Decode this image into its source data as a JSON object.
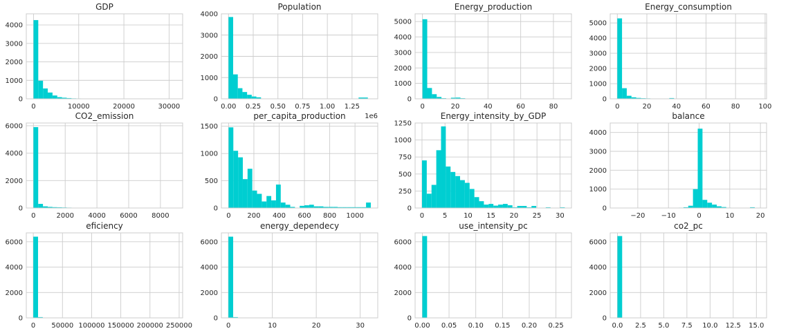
{
  "figure": {
    "bar_color": "#00ced1",
    "background": "#ffffff",
    "grid_color": "#cccccc"
  },
  "chart_data": [
    {
      "type": "bar",
      "title": "GDP",
      "xlim": [
        -1600,
        33000
      ],
      "ylim": [
        0,
        4600
      ],
      "xticks": [
        0,
        10000,
        20000,
        30000
      ],
      "xtick_labels": [
        "0",
        "10000",
        "20000",
        "30000"
      ],
      "yticks": [
        0,
        1000,
        2000,
        3000,
        4000
      ],
      "ytick_labels": [
        "0",
        "1000",
        "2000",
        "3000",
        "4000"
      ],
      "bin_start": 0,
      "bin_width": 1050,
      "offset_text": "",
      "values": [
        4260,
        980,
        560,
        340,
        180,
        90,
        60,
        40,
        25,
        20,
        15,
        12,
        10,
        8,
        8,
        8,
        8,
        8,
        8,
        6,
        5,
        2,
        0,
        0,
        0,
        0,
        0,
        0,
        0,
        2
      ]
    },
    {
      "type": "bar",
      "title": "Population",
      "xlim": [
        -72000,
        1510000
      ],
      "ylim": [
        0,
        4000
      ],
      "xticks": [
        0,
        250000,
        500000,
        750000,
        1000000,
        1250000
      ],
      "xtick_labels": [
        "0.00",
        "0.25",
        "0.50",
        "0.75",
        "1.00",
        "1.25"
      ],
      "yticks": [
        0,
        1000,
        2000,
        3000,
        4000
      ],
      "ytick_labels": [
        "0",
        "1000",
        "2000",
        "3000",
        "4000"
      ],
      "bin_start": 0,
      "bin_width": 47000,
      "offset_text": "1e6",
      "values": [
        3850,
        1150,
        500,
        320,
        190,
        110,
        70,
        0,
        0,
        0,
        0,
        0,
        0,
        0,
        0,
        14,
        14,
        14,
        14,
        14,
        14,
        14,
        14,
        14,
        14,
        14,
        14,
        14,
        60,
        60
      ]
    },
    {
      "type": "bar",
      "title": "Energy_production",
      "xlim": [
        -4.5,
        91
      ],
      "ylim": [
        0,
        5500
      ],
      "xticks": [
        0,
        20,
        40,
        60,
        80
      ],
      "xtick_labels": [
        "0",
        "20",
        "40",
        "60",
        "80"
      ],
      "yticks": [
        0,
        1000,
        2000,
        3000,
        4000,
        5000
      ],
      "ytick_labels": [
        "0",
        "1000",
        "2000",
        "3000",
        "4000",
        "5000"
      ],
      "bin_start": 0,
      "bin_width": 2.9,
      "offset_text": "",
      "values": [
        5150,
        700,
        300,
        120,
        40,
        20,
        70,
        80,
        40,
        20,
        15,
        10,
        5,
        5,
        3,
        3,
        3,
        3,
        3,
        3,
        3,
        3,
        3,
        3,
        3,
        3,
        3,
        3,
        3,
        3
      ]
    },
    {
      "type": "bar",
      "title": "Energy_consumption",
      "xlim": [
        -4.8,
        101
      ],
      "ylim": [
        0,
        5600
      ],
      "xticks": [
        0,
        20,
        40,
        60,
        80,
        100
      ],
      "xtick_labels": [
        "0",
        "20",
        "40",
        "60",
        "80",
        "100"
      ],
      "yticks": [
        0,
        1000,
        2000,
        3000,
        4000,
        5000
      ],
      "ytick_labels": [
        "0",
        "1000",
        "2000",
        "3000",
        "4000",
        "5000"
      ],
      "bin_start": 0,
      "bin_width": 3.2,
      "offset_text": "",
      "values": [
        5300,
        700,
        200,
        100,
        60,
        40,
        30,
        20,
        15,
        15,
        15,
        50,
        20,
        5,
        5,
        5,
        5,
        5,
        3,
        3,
        3,
        3,
        3,
        3,
        3,
        3,
        3,
        3,
        3,
        3
      ]
    },
    {
      "type": "bar",
      "title": "CO2_emission",
      "xlim": [
        -450,
        9400
      ],
      "ylim": [
        0,
        6200
      ],
      "xticks": [
        0,
        2000,
        4000,
        6000,
        8000
      ],
      "xtick_labels": [
        "0",
        "2000",
        "4000",
        "6000",
        "8000"
      ],
      "yticks": [
        0,
        2000,
        4000,
        6000
      ],
      "ytick_labels": [
        "0",
        "2000",
        "4000",
        "6000"
      ],
      "bin_start": 0,
      "bin_width": 300,
      "offset_text": "",
      "values": [
        5900,
        300,
        120,
        80,
        60,
        50,
        40,
        30,
        20,
        10,
        5,
        5,
        5,
        5,
        5,
        5,
        5,
        5,
        5,
        5,
        5,
        5,
        5,
        5,
        5,
        5,
        5,
        5,
        5,
        5
      ]
    },
    {
      "type": "bar",
      "title": "per_capita_production",
      "xlim": [
        -57,
        1180
      ],
      "ylim": [
        0,
        1560
      ],
      "xticks": [
        0,
        200,
        400,
        600,
        800,
        1000
      ],
      "xtick_labels": [
        "0",
        "200",
        "400",
        "600",
        "800",
        "1000"
      ],
      "yticks": [
        0,
        500,
        1000,
        1500
      ],
      "ytick_labels": [
        "0",
        "500",
        "1000",
        "1500"
      ],
      "bin_start": 0,
      "bin_width": 37.5,
      "offset_text": "",
      "values": [
        1480,
        1050,
        930,
        530,
        720,
        320,
        260,
        120,
        220,
        140,
        430,
        100,
        60,
        20,
        5,
        40,
        50,
        60,
        30,
        30,
        20,
        20,
        20,
        15,
        15,
        15,
        15,
        15,
        15,
        100
      ]
    },
    {
      "type": "bar",
      "title": "Energy_intensity_by_GDP",
      "xlim": [
        -1.5,
        32.5
      ],
      "ylim": [
        0,
        1250
      ],
      "xticks": [
        0,
        5,
        10,
        15,
        20,
        25,
        30
      ],
      "xtick_labels": [
        "0",
        "5",
        "10",
        "15",
        "20",
        "25",
        "30"
      ],
      "yticks": [
        0,
        250,
        500,
        750,
        1000,
        1250
      ],
      "ytick_labels": [
        "0",
        "250",
        "500",
        "750",
        "1000",
        "1250"
      ],
      "bin_start": 0,
      "bin_width": 1.035,
      "offset_text": "",
      "values": [
        700,
        210,
        340,
        850,
        1200,
        610,
        530,
        470,
        410,
        370,
        280,
        160,
        100,
        50,
        60,
        35,
        50,
        60,
        40,
        10,
        30,
        30,
        10,
        30,
        5,
        5,
        10,
        5,
        5,
        10
      ]
    },
    {
      "type": "bar",
      "title": "balance",
      "xlim": [
        -29,
        22
      ],
      "ylim": [
        0,
        4500
      ],
      "xticks": [
        -20,
        -10,
        0,
        10,
        20
      ],
      "xtick_labels": [
        "−20",
        "−10",
        "0",
        "10",
        "20"
      ],
      "yticks": [
        0,
        1000,
        2000,
        3000,
        4000
      ],
      "ytick_labels": [
        "0",
        "1000",
        "2000",
        "3000",
        "4000"
      ],
      "bin_start": -26.8,
      "bin_width": 1.55,
      "offset_text": "",
      "values": [
        5,
        0,
        0,
        0,
        0,
        0,
        0,
        0,
        0,
        0,
        0,
        5,
        10,
        20,
        40,
        120,
        1000,
        4200,
        430,
        280,
        180,
        90,
        50,
        20,
        10,
        5,
        5,
        5,
        40,
        5
      ]
    },
    {
      "type": "bar",
      "title": "eficiency",
      "xlim": [
        -12000,
        256000
      ],
      "ylim": [
        0,
        6700
      ],
      "xticks": [
        0,
        50000,
        100000,
        150000,
        200000,
        250000
      ],
      "xtick_labels": [
        "0",
        "50000",
        "100000",
        "150000",
        "200000",
        "250000"
      ],
      "yticks": [
        0,
        2000,
        4000,
        6000
      ],
      "ytick_labels": [
        "0",
        "2000",
        "4000",
        "6000"
      ],
      "bin_start": 0,
      "bin_width": 8150,
      "offset_text": "",
      "values": [
        6400,
        60,
        20,
        5,
        3,
        2,
        2,
        2,
        2,
        2,
        2,
        2,
        2,
        2,
        2,
        2,
        2,
        2,
        2,
        2,
        2,
        2,
        2,
        2,
        2,
        2,
        2,
        2,
        2,
        2
      ]
    },
    {
      "type": "bar",
      "title": "energy_dependecy",
      "xlim": [
        -1.6,
        34
      ],
      "ylim": [
        0,
        6700
      ],
      "xticks": [
        0,
        10,
        20,
        30
      ],
      "xtick_labels": [
        "0",
        "10",
        "20",
        "30"
      ],
      "yticks": [
        0,
        2000,
        4000,
        6000
      ],
      "ytick_labels": [
        "0",
        "2000",
        "4000",
        "6000"
      ],
      "bin_start": 0,
      "bin_width": 1.08,
      "offset_text": "",
      "values": [
        6400,
        60,
        10,
        5,
        3,
        2,
        2,
        2,
        2,
        2,
        2,
        2,
        2,
        2,
        2,
        2,
        2,
        2,
        2,
        2,
        2,
        2,
        2,
        2,
        2,
        2,
        2,
        2,
        2,
        2
      ]
    },
    {
      "type": "bar",
      "title": "use_intensity_pc",
      "xlim": [
        -0.0135,
        0.279
      ],
      "ylim": [
        0,
        6700
      ],
      "xticks": [
        0,
        0.05,
        0.1,
        0.15,
        0.2,
        0.25
      ],
      "xtick_labels": [
        "0.00",
        "0.05",
        "0.10",
        "0.15",
        "0.20",
        "0.25"
      ],
      "yticks": [
        0,
        2000,
        4000,
        6000
      ],
      "ytick_labels": [
        "0",
        "2000",
        "4000",
        "6000"
      ],
      "bin_start": 0,
      "bin_width": 0.0089,
      "offset_text": "",
      "values": [
        6450,
        2,
        1,
        1,
        1,
        1,
        1,
        1,
        1,
        1,
        1,
        1,
        1,
        1,
        1,
        1,
        1,
        1,
        1,
        1,
        1,
        1,
        1,
        1,
        1,
        1,
        1,
        1,
        1,
        1
      ]
    },
    {
      "type": "bar",
      "title": "co2_pc",
      "xlim": [
        -0.78,
        16.1
      ],
      "ylim": [
        0,
        6700
      ],
      "xticks": [
        0,
        2.5,
        5,
        7.5,
        10,
        12.5,
        15
      ],
      "xtick_labels": [
        "0.0",
        "2.5",
        "5.0",
        "7.5",
        "10.0",
        "12.5",
        "15.0"
      ],
      "yticks": [
        0,
        2000,
        4000,
        6000
      ],
      "ytick_labels": [
        "0",
        "2000",
        "4000",
        "6000"
      ],
      "bin_start": 0,
      "bin_width": 0.51,
      "offset_text": "",
      "values": [
        6450,
        5,
        2,
        1,
        1,
        1,
        1,
        1,
        1,
        1,
        1,
        1,
        1,
        1,
        1,
        1,
        1,
        1,
        1,
        1,
        1,
        1,
        1,
        1,
        1,
        1,
        1,
        1,
        1,
        1
      ]
    }
  ]
}
